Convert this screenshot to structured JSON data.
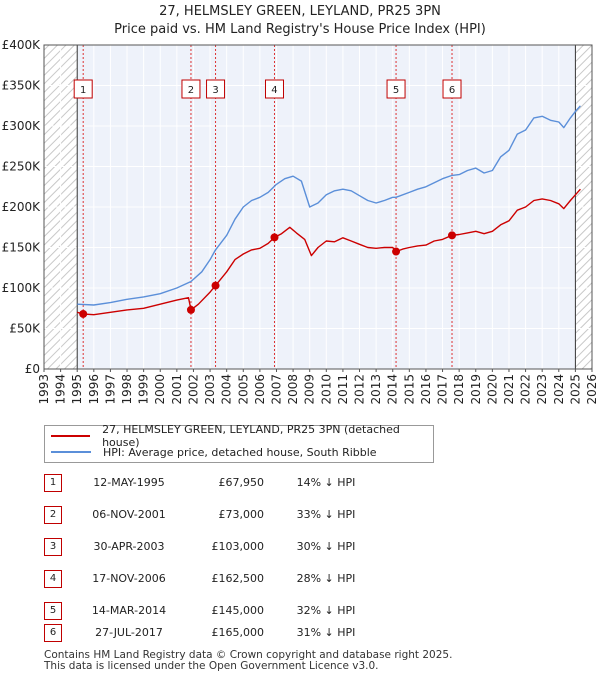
{
  "chart_data": {
    "type": "line",
    "title": "27, HELMSLEY GREEN, LEYLAND, PR25 3PN",
    "subtitle": "Price paid vs. HM Land Registry's House Price Index (HPI)",
    "xlim": [
      1993,
      2026
    ],
    "ylim": [
      0,
      400000
    ],
    "x_ticks": [
      "1993",
      "1994",
      "1995",
      "1996",
      "1997",
      "1998",
      "1999",
      "2000",
      "2001",
      "2002",
      "2003",
      "2004",
      "2005",
      "2006",
      "2007",
      "2008",
      "2009",
      "2010",
      "2011",
      "2012",
      "2013",
      "2014",
      "2015",
      "2016",
      "2017",
      "2018",
      "2019",
      "2020",
      "2021",
      "2022",
      "2023",
      "2024",
      "2025",
      "2026"
    ],
    "y_ticks": [
      {
        "value": 0,
        "label": "£0"
      },
      {
        "value": 50000,
        "label": "£50K"
      },
      {
        "value": 100000,
        "label": "£100K"
      },
      {
        "value": 150000,
        "label": "£150K"
      },
      {
        "value": 200000,
        "label": "£200K"
      },
      {
        "value": 250000,
        "label": "£250K"
      },
      {
        "value": 300000,
        "label": "£300K"
      },
      {
        "value": 350000,
        "label": "£350K"
      },
      {
        "value": 400000,
        "label": "£400K"
      }
    ],
    "hatched_before": 1995.0,
    "hatched_after": 2025.0,
    "series": [
      {
        "name": "27, HELMSLEY GREEN, LEYLAND, PR25 3PN (detached house)",
        "color": "#cc0000",
        "points": [
          [
            1995.0,
            70000
          ],
          [
            1995.36,
            67950
          ],
          [
            1996.0,
            67000
          ],
          [
            1997.0,
            70000
          ],
          [
            1998.0,
            73000
          ],
          [
            1999.0,
            75000
          ],
          [
            2000.0,
            80000
          ],
          [
            2001.0,
            85000
          ],
          [
            2001.7,
            88000
          ],
          [
            2001.85,
            73000
          ],
          [
            2002.3,
            80000
          ],
          [
            2003.0,
            95000
          ],
          [
            2003.33,
            103000
          ],
          [
            2004.0,
            120000
          ],
          [
            2004.5,
            135000
          ],
          [
            2005.0,
            142000
          ],
          [
            2005.5,
            147000
          ],
          [
            2006.0,
            149000
          ],
          [
            2006.5,
            155000
          ],
          [
            2006.88,
            162500
          ],
          [
            2007.3,
            167000
          ],
          [
            2007.8,
            175000
          ],
          [
            2008.2,
            168000
          ],
          [
            2008.7,
            160000
          ],
          [
            2009.1,
            140000
          ],
          [
            2009.5,
            150000
          ],
          [
            2010.0,
            158000
          ],
          [
            2010.5,
            157000
          ],
          [
            2011.0,
            162000
          ],
          [
            2011.5,
            158000
          ],
          [
            2012.0,
            154000
          ],
          [
            2012.5,
            150000
          ],
          [
            2013.0,
            149000
          ],
          [
            2013.5,
            150000
          ],
          [
            2014.0,
            150000
          ],
          [
            2014.2,
            145000
          ],
          [
            2014.6,
            148000
          ],
          [
            2015.0,
            150000
          ],
          [
            2015.5,
            152000
          ],
          [
            2016.0,
            153000
          ],
          [
            2016.5,
            158000
          ],
          [
            2017.0,
            160000
          ],
          [
            2017.57,
            165000
          ],
          [
            2018.0,
            166000
          ],
          [
            2018.5,
            168000
          ],
          [
            2019.0,
            170000
          ],
          [
            2019.5,
            167000
          ],
          [
            2020.0,
            170000
          ],
          [
            2020.5,
            178000
          ],
          [
            2021.0,
            183000
          ],
          [
            2021.5,
            196000
          ],
          [
            2022.0,
            200000
          ],
          [
            2022.5,
            208000
          ],
          [
            2023.0,
            210000
          ],
          [
            2023.5,
            208000
          ],
          [
            2024.0,
            204000
          ],
          [
            2024.3,
            198000
          ],
          [
            2024.7,
            208000
          ],
          [
            2025.0,
            215000
          ],
          [
            2025.3,
            222000
          ]
        ]
      },
      {
        "name": "HPI: Average price, detached house, South Ribble",
        "color": "#5b8fd9",
        "points": [
          [
            1995.0,
            80000
          ],
          [
            1996.0,
            79000
          ],
          [
            1997.0,
            82000
          ],
          [
            1998.0,
            86000
          ],
          [
            1999.0,
            89000
          ],
          [
            2000.0,
            93000
          ],
          [
            2001.0,
            100000
          ],
          [
            2001.85,
            108000
          ],
          [
            2002.5,
            120000
          ],
          [
            2003.0,
            135000
          ],
          [
            2003.33,
            147000
          ],
          [
            2004.0,
            165000
          ],
          [
            2004.5,
            185000
          ],
          [
            2005.0,
            200000
          ],
          [
            2005.5,
            208000
          ],
          [
            2006.0,
            212000
          ],
          [
            2006.5,
            218000
          ],
          [
            2007.0,
            228000
          ],
          [
            2007.5,
            235000
          ],
          [
            2008.0,
            238000
          ],
          [
            2008.5,
            232000
          ],
          [
            2009.0,
            200000
          ],
          [
            2009.5,
            205000
          ],
          [
            2010.0,
            215000
          ],
          [
            2010.5,
            220000
          ],
          [
            2011.0,
            222000
          ],
          [
            2011.5,
            220000
          ],
          [
            2012.0,
            214000
          ],
          [
            2012.5,
            208000
          ],
          [
            2013.0,
            205000
          ],
          [
            2013.5,
            208000
          ],
          [
            2014.0,
            212000
          ],
          [
            2014.2,
            212000
          ],
          [
            2015.0,
            218000
          ],
          [
            2015.5,
            222000
          ],
          [
            2016.0,
            225000
          ],
          [
            2016.5,
            230000
          ],
          [
            2017.0,
            235000
          ],
          [
            2017.57,
            239000
          ],
          [
            2018.0,
            240000
          ],
          [
            2018.5,
            245000
          ],
          [
            2019.0,
            248000
          ],
          [
            2019.5,
            242000
          ],
          [
            2020.0,
            245000
          ],
          [
            2020.5,
            262000
          ],
          [
            2021.0,
            270000
          ],
          [
            2021.5,
            290000
          ],
          [
            2022.0,
            295000
          ],
          [
            2022.5,
            310000
          ],
          [
            2023.0,
            312000
          ],
          [
            2023.5,
            307000
          ],
          [
            2024.0,
            305000
          ],
          [
            2024.3,
            298000
          ],
          [
            2024.7,
            310000
          ],
          [
            2025.0,
            318000
          ],
          [
            2025.3,
            325000
          ]
        ]
      }
    ],
    "sales": [
      {
        "num": "1",
        "x": 1995.36,
        "price": 67950
      },
      {
        "num": "2",
        "x": 2001.85,
        "price": 73000
      },
      {
        "num": "3",
        "x": 2003.33,
        "price": 103000
      },
      {
        "num": "4",
        "x": 2006.88,
        "price": 162500
      },
      {
        "num": "5",
        "x": 2014.2,
        "price": 145000
      },
      {
        "num": "6",
        "x": 2017.57,
        "price": 165000
      }
    ]
  },
  "legend": {
    "property": "27, HELMSLEY GREEN, LEYLAND, PR25 3PN (detached house)",
    "hpi": "HPI: Average price, detached house, South Ribble"
  },
  "transactions": [
    {
      "num": "1",
      "date": "12-MAY-1995",
      "price": "£67,950",
      "hpi": "14% ↓ HPI"
    },
    {
      "num": "2",
      "date": "06-NOV-2001",
      "price": "£73,000",
      "hpi": "33% ↓ HPI"
    },
    {
      "num": "3",
      "date": "30-APR-2003",
      "price": "£103,000",
      "hpi": "30% ↓ HPI"
    },
    {
      "num": "4",
      "date": "17-NOV-2006",
      "price": "£162,500",
      "hpi": "28% ↓ HPI"
    },
    {
      "num": "5",
      "date": "14-MAR-2014",
      "price": "£145,000",
      "hpi": "32% ↓ HPI"
    },
    {
      "num": "6",
      "date": "27-JUL-2017",
      "price": "£165,000",
      "hpi": "31% ↓ HPI"
    }
  ],
  "colors": {
    "property": "#cc0000",
    "hpi": "#5b8fd9",
    "plot_bg": "#eef2fa",
    "grid": "#ffffff"
  },
  "footer": {
    "line1": "Contains HM Land Registry data © Crown copyright and database right 2025.",
    "line2": "This data is licensed under the Open Government Licence v3.0."
  }
}
